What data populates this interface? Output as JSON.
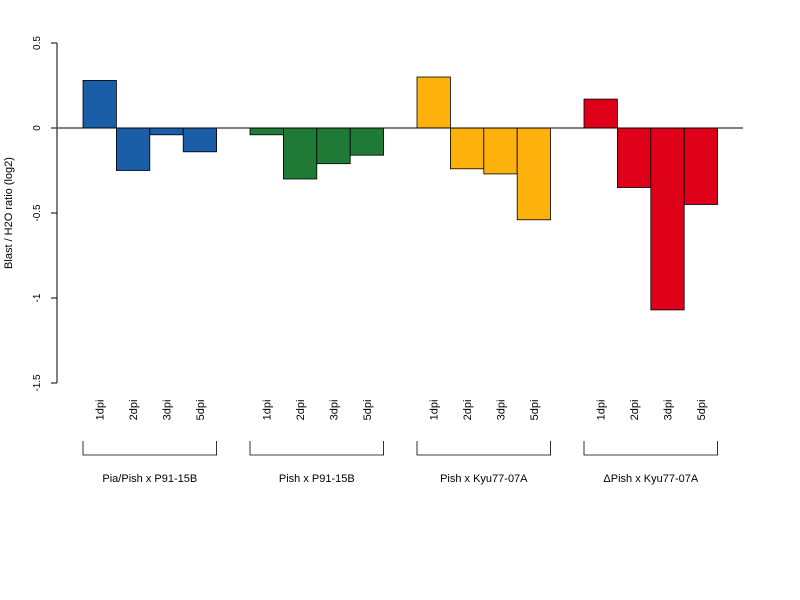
{
  "chart_data": {
    "type": "bar",
    "ylabel": "Blast / H2O ratio (log2)",
    "ylim": [
      -1.5,
      0.5
    ],
    "yticks": [
      "0.5",
      "0",
      "-0.5",
      "-1",
      "-1.5"
    ],
    "grid": false,
    "zero_line": true,
    "groups": [
      {
        "name": "Pia/Pish x P91-15B",
        "color": "#1a5ea8",
        "categories": [
          "1dpi",
          "2dpi",
          "3dpi",
          "5dpi"
        ],
        "values": [
          0.28,
          -0.25,
          -0.04,
          -0.14
        ]
      },
      {
        "name": "Pish x P91-15B",
        "color": "#1f7a35",
        "categories": [
          "1dpi",
          "2dpi",
          "3dpi",
          "5dpi"
        ],
        "values": [
          -0.04,
          -0.3,
          -0.21,
          -0.16
        ]
      },
      {
        "name": "Pish x Kyu77-07A",
        "color": "#fdb10d",
        "categories": [
          "1dpi",
          "2dpi",
          "3dpi",
          "5dpi"
        ],
        "values": [
          0.3,
          -0.24,
          -0.27,
          -0.54
        ]
      },
      {
        "name": "ΔPish x Kyu77-07A",
        "color": "#de0019",
        "categories": [
          "1dpi",
          "2dpi",
          "3dpi",
          "5dpi"
        ],
        "values": [
          0.17,
          -0.35,
          -1.07,
          -0.45
        ]
      }
    ]
  }
}
